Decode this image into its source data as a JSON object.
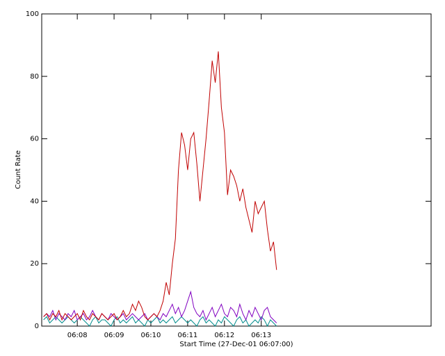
{
  "chart_data": {
    "type": "line",
    "xlabel": "Start Time (27-Dec-01 06:07:00)",
    "ylabel": "Count Rate",
    "x": [
      5,
      10,
      15,
      20,
      25,
      30,
      35,
      40,
      45,
      50,
      55,
      60,
      65,
      70,
      75,
      80,
      85,
      90,
      95,
      100,
      105,
      110,
      115,
      120,
      125,
      130,
      135,
      140,
      145,
      150,
      155,
      160,
      165,
      170,
      175,
      180,
      185,
      190,
      195,
      200,
      205,
      210,
      215,
      220,
      225,
      230,
      235,
      240,
      245,
      250,
      255,
      260,
      265,
      270,
      275,
      280,
      285,
      290,
      295,
      300,
      305,
      310,
      315,
      320,
      325,
      330,
      335,
      340,
      345,
      350,
      355,
      360,
      365,
      370,
      375,
      380,
      385
    ],
    "series": [
      {
        "color": "#c00000",
        "values": [
          3,
          4,
          2,
          4,
          3,
          5,
          2,
          4,
          3,
          2,
          3,
          4,
          2,
          5,
          3,
          2,
          4,
          3,
          2,
          4,
          3,
          2,
          3,
          4,
          2,
          3,
          5,
          3,
          4,
          7,
          5,
          8,
          6,
          3,
          2,
          3,
          4,
          3,
          5,
          8,
          14,
          10,
          20,
          28,
          50,
          62,
          58,
          50,
          60,
          62,
          52,
          40,
          50,
          60,
          72,
          85,
          78,
          88,
          70,
          62,
          42,
          50,
          48,
          45,
          40,
          44,
          38,
          34,
          30,
          40,
          36,
          38,
          40,
          31,
          24,
          27,
          18
        ]
      },
      {
        "color": "#8000c0",
        "values": [
          3,
          4,
          3,
          5,
          2,
          4,
          3,
          2,
          4,
          3,
          5,
          2,
          3,
          4,
          2,
          3,
          5,
          3,
          2,
          4,
          3,
          2,
          4,
          3,
          2,
          3,
          4,
          2,
          3,
          4,
          3,
          2,
          3,
          4,
          2,
          3,
          4,
          3,
          2,
          4,
          3,
          5,
          7,
          4,
          6,
          3,
          5,
          8,
          11,
          6,
          4,
          3,
          5,
          2,
          4,
          6,
          3,
          5,
          7,
          4,
          3,
          6,
          5,
          3,
          7,
          4,
          2,
          5,
          3,
          6,
          4,
          2,
          5,
          6,
          3,
          2,
          1
        ]
      },
      {
        "color": "#008c8c",
        "values": [
          2,
          3,
          1,
          2,
          3,
          2,
          1,
          2,
          3,
          2,
          1,
          2,
          3,
          2,
          1,
          0,
          2,
          3,
          1,
          2,
          2,
          1,
          0,
          2,
          3,
          1,
          2,
          1,
          2,
          3,
          1,
          2,
          1,
          0,
          2,
          1,
          2,
          3,
          1,
          2,
          1,
          2,
          3,
          1,
          2,
          3,
          2,
          1,
          2,
          1,
          0,
          2,
          3,
          1,
          2,
          1,
          0,
          2,
          1,
          3,
          2,
          1,
          0,
          2,
          3,
          1,
          2,
          0,
          1,
          2,
          1,
          3,
          2,
          0,
          2,
          1,
          0
        ]
      }
    ],
    "xlim": [
      2,
      637
    ],
    "xticks": [
      {
        "value": 60,
        "label": "06:08"
      },
      {
        "value": 120,
        "label": "06:09"
      },
      {
        "value": 180,
        "label": "06:10"
      },
      {
        "value": 240,
        "label": "06:11"
      },
      {
        "value": 300,
        "label": "06:12"
      },
      {
        "value": 360,
        "label": "06:13"
      }
    ],
    "ylim": [
      0,
      100
    ],
    "yticks": [
      0,
      20,
      40,
      60,
      80,
      100
    ]
  }
}
